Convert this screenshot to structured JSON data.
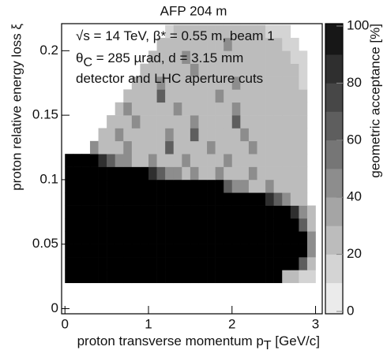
{
  "chart_data": {
    "type": "heatmap",
    "title": "AFP 204 m",
    "annotations": [
      [
        "√s = 14 TeV, β* = 0.55 m, beam 1"
      ],
      [
        "θ",
        "C",
        " = 285 µrad, d = 3.15 mm"
      ],
      [
        "detector and LHC aperture cuts"
      ]
    ],
    "x_label": [
      "proton transverse momentum p",
      "T",
      " [GeV/c]"
    ],
    "y_label": "proton relative energy loss ξ",
    "colorbar_label": "geometric acceptance [%]",
    "xlim": [
      -0.04,
      3.08
    ],
    "ylim": [
      -0.004,
      0.221
    ],
    "xticks": [
      0,
      1,
      2,
      3
    ],
    "yticks": [
      0,
      0.05,
      0.1,
      0.15,
      0.2
    ],
    "zlim": [
      0,
      100
    ],
    "zticks": [
      0,
      20,
      40,
      60,
      80,
      100
    ],
    "xbins": [
      0,
      0.1,
      0.2,
      0.3,
      0.4,
      0.5,
      0.6,
      0.7,
      0.8,
      0.9,
      1.0,
      1.1,
      1.2,
      1.3,
      1.4,
      1.5,
      1.6,
      1.7,
      1.8,
      1.9,
      2.0,
      2.1,
      2.2,
      2.3,
      2.4,
      2.5,
      2.6,
      2.7,
      2.8,
      2.9,
      3.0
    ],
    "ybins": [
      0.02,
      0.03,
      0.04,
      0.05,
      0.06,
      0.07,
      0.08,
      0.09,
      0.1,
      0.11,
      0.12,
      0.13,
      0.14,
      0.15,
      0.16,
      0.17,
      0.18,
      0.19,
      0.2,
      0.21,
      0.22
    ],
    "z": [
      [
        100,
        100,
        100,
        100,
        100,
        100,
        100,
        100,
        100,
        100,
        100,
        100,
        100,
        100,
        100,
        100,
        100,
        100,
        100,
        100,
        100,
        100,
        100,
        100,
        100,
        100,
        20,
        20,
        10,
        10
      ],
      [
        100,
        100,
        100,
        100,
        100,
        100,
        100,
        100,
        100,
        100,
        100,
        100,
        100,
        100,
        100,
        100,
        100,
        100,
        100,
        100,
        100,
        100,
        100,
        100,
        100,
        100,
        100,
        100,
        60,
        20
      ],
      [
        100,
        100,
        100,
        100,
        100,
        100,
        100,
        100,
        100,
        100,
        100,
        100,
        100,
        100,
        100,
        100,
        100,
        100,
        100,
        100,
        100,
        100,
        100,
        100,
        100,
        100,
        100,
        100,
        100,
        40
      ],
      [
        100,
        100,
        100,
        100,
        100,
        100,
        100,
        100,
        100,
        100,
        100,
        100,
        100,
        100,
        100,
        100,
        100,
        100,
        100,
        100,
        100,
        100,
        100,
        100,
        100,
        100,
        100,
        100,
        100,
        40
      ],
      [
        100,
        100,
        100,
        100,
        100,
        100,
        100,
        100,
        100,
        100,
        100,
        100,
        100,
        100,
        100,
        100,
        100,
        100,
        100,
        100,
        100,
        100,
        100,
        100,
        100,
        100,
        100,
        100,
        60,
        20
      ],
      [
        100,
        100,
        100,
        100,
        100,
        100,
        100,
        100,
        100,
        100,
        100,
        100,
        100,
        100,
        100,
        100,
        100,
        100,
        100,
        100,
        100,
        100,
        100,
        100,
        100,
        100,
        100,
        80,
        40,
        20
      ],
      [
        100,
        100,
        100,
        100,
        100,
        100,
        100,
        100,
        100,
        100,
        100,
        100,
        100,
        100,
        100,
        100,
        100,
        100,
        100,
        100,
        100,
        100,
        100,
        100,
        80,
        60,
        40,
        20,
        20,
        null
      ],
      [
        100,
        100,
        100,
        100,
        100,
        100,
        100,
        100,
        100,
        100,
        100,
        100,
        100,
        100,
        100,
        100,
        100,
        100,
        100,
        60,
        40,
        40,
        20,
        20,
        40,
        20,
        20,
        20,
        20,
        null
      ],
      [
        100,
        100,
        100,
        100,
        100,
        100,
        100,
        100,
        100,
        100,
        80,
        60,
        40,
        40,
        20,
        40,
        20,
        20,
        40,
        20,
        20,
        20,
        40,
        20,
        20,
        20,
        20,
        20,
        20,
        null
      ],
      [
        100,
        100,
        100,
        100,
        80,
        60,
        40,
        40,
        20,
        20,
        40,
        20,
        20,
        20,
        40,
        20,
        20,
        20,
        20,
        40,
        20,
        20,
        20,
        20,
        20,
        20,
        20,
        20,
        20,
        null
      ],
      [
        null,
        null,
        null,
        40,
        20,
        20,
        20,
        40,
        20,
        20,
        20,
        20,
        60,
        20,
        20,
        20,
        20,
        40,
        20,
        20,
        20,
        20,
        40,
        20,
        20,
        20,
        20,
        20,
        20,
        null
      ],
      [
        null,
        null,
        null,
        null,
        20,
        20,
        40,
        20,
        20,
        20,
        20,
        20,
        40,
        20,
        20,
        60,
        20,
        20,
        20,
        20,
        20,
        40,
        20,
        20,
        20,
        20,
        20,
        20,
        20,
        null
      ],
      [
        null,
        null,
        null,
        null,
        null,
        20,
        20,
        20,
        40,
        20,
        20,
        20,
        20,
        20,
        20,
        40,
        20,
        20,
        20,
        20,
        60,
        20,
        20,
        20,
        20,
        20,
        20,
        20,
        20,
        null
      ],
      [
        null,
        null,
        null,
        null,
        null,
        null,
        20,
        40,
        20,
        20,
        20,
        20,
        20,
        40,
        20,
        20,
        20,
        20,
        20,
        20,
        40,
        20,
        20,
        20,
        20,
        20,
        20,
        20,
        20,
        null
      ],
      [
        null,
        null,
        null,
        null,
        null,
        null,
        null,
        20,
        20,
        20,
        20,
        60,
        20,
        20,
        20,
        20,
        20,
        20,
        40,
        20,
        20,
        20,
        20,
        20,
        20,
        20,
        20,
        20,
        20,
        null
      ],
      [
        null,
        null,
        null,
        null,
        null,
        null,
        null,
        null,
        20,
        20,
        20,
        40,
        20,
        20,
        20,
        20,
        20,
        20,
        20,
        20,
        40,
        20,
        20,
        20,
        20,
        20,
        20,
        20,
        10,
        null
      ],
      [
        null,
        null,
        null,
        null,
        null,
        null,
        null,
        null,
        null,
        20,
        20,
        20,
        20,
        20,
        20,
        40,
        20,
        20,
        20,
        20,
        20,
        20,
        20,
        20,
        20,
        20,
        20,
        20,
        10,
        null
      ],
      [
        null,
        null,
        null,
        null,
        null,
        null,
        null,
        null,
        null,
        null,
        20,
        20,
        20,
        20,
        40,
        20,
        20,
        20,
        20,
        20,
        20,
        20,
        20,
        20,
        20,
        20,
        20,
        10,
        10,
        null
      ],
      [
        null,
        null,
        null,
        null,
        null,
        null,
        null,
        null,
        null,
        null,
        null,
        20,
        20,
        20,
        20,
        20,
        20,
        20,
        20,
        40,
        20,
        20,
        20,
        20,
        20,
        20,
        10,
        10,
        null,
        null
      ],
      [
        null,
        null,
        null,
        null,
        null,
        null,
        null,
        null,
        null,
        null,
        null,
        null,
        10,
        20,
        20,
        20,
        20,
        20,
        20,
        20,
        20,
        20,
        20,
        20,
        10,
        10,
        10,
        null,
        null,
        null
      ]
    ]
  }
}
